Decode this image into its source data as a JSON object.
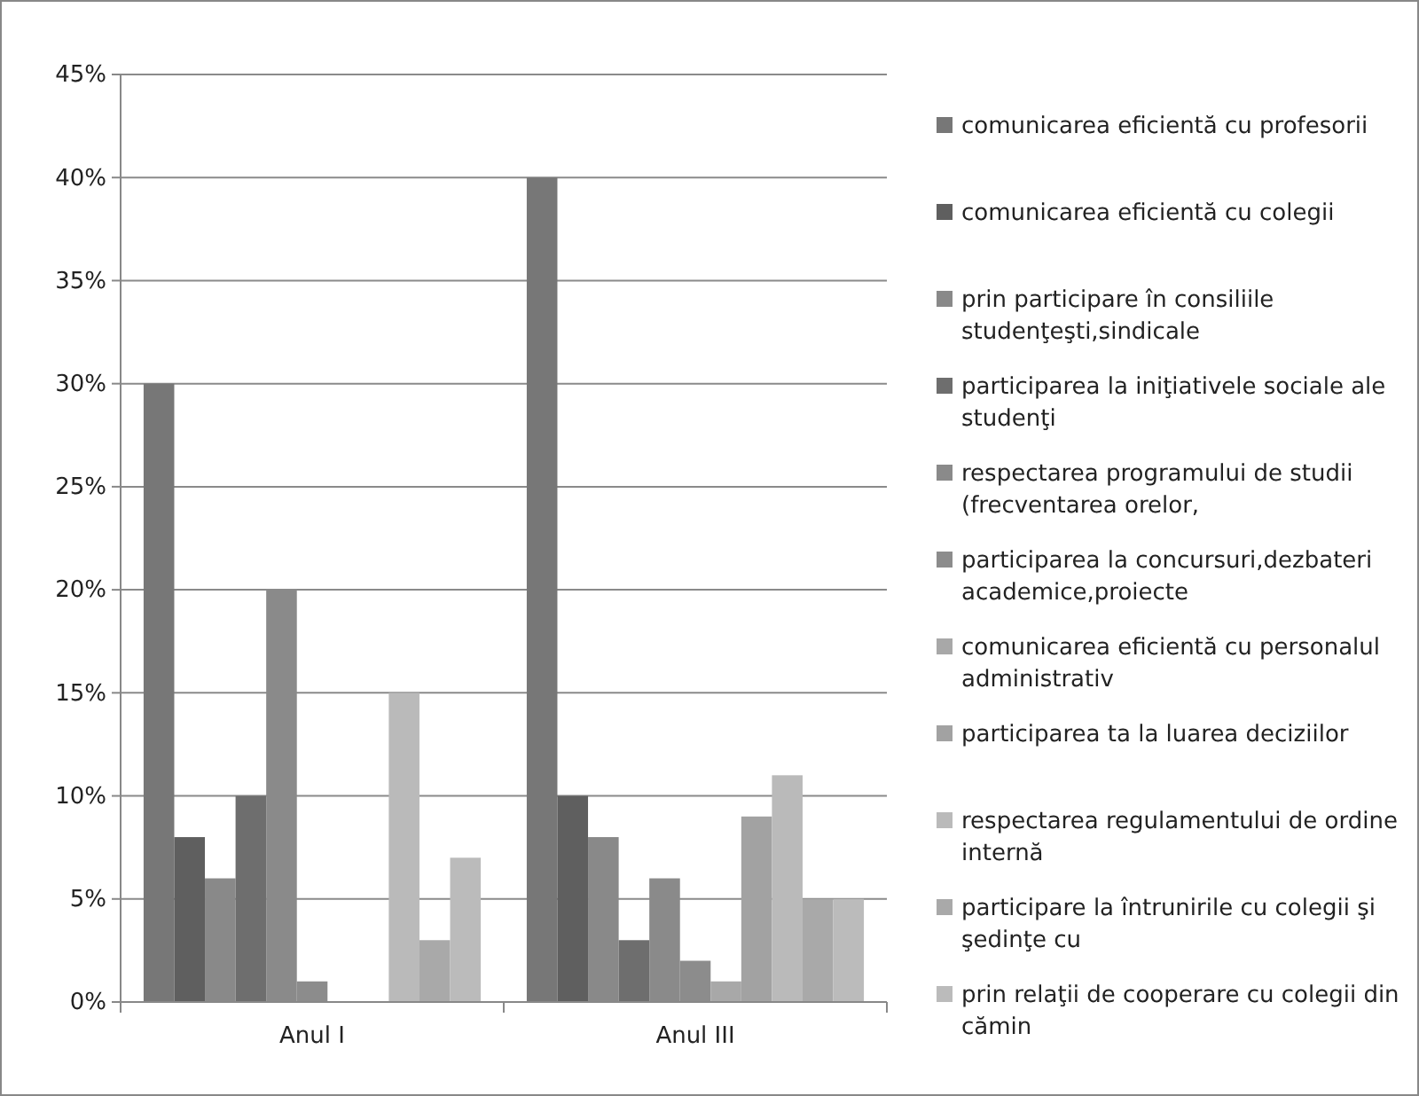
{
  "chart_data": {
    "type": "bar",
    "categories": [
      "Anul I",
      "Anul III"
    ],
    "series": [
      {
        "name": "comunicarea eficientă cu profesorii",
        "color": "#777777",
        "values": [
          30,
          40
        ]
      },
      {
        "name": "comunicarea eficientă cu colegii",
        "color": "#5f5f5f",
        "values": [
          8,
          10
        ]
      },
      {
        "name": "prin participare în consiliile studenţeşti,sindicale",
        "color": "#898989",
        "values": [
          6,
          8
        ]
      },
      {
        "name": "participarea la iniţiativele sociale ale studenţi",
        "color": "#6e6e6e",
        "values": [
          10,
          3
        ]
      },
      {
        "name": "respectarea programului de studii (frecventarea orelor,",
        "color": "#8a8a8a",
        "values": [
          20,
          6
        ]
      },
      {
        "name": "participarea la concursuri,dezbateri academice,proiecte",
        "color": "#8c8c8c",
        "values": [
          1,
          2
        ]
      },
      {
        "name": "comunicarea eficientă cu personalul administrativ",
        "color": "#a8a8a8",
        "values": [
          0,
          1
        ]
      },
      {
        "name": "participarea ta la luarea deciziilor",
        "color": "#a2a2a2",
        "values": [
          0,
          9
        ]
      },
      {
        "name": "respectarea regulamentului de ordine internă",
        "color": "#bababa",
        "values": [
          15,
          11
        ]
      },
      {
        "name": "participare la întrunirile cu colegii şi şedinţe cu",
        "color": "#a9a9a9",
        "values": [
          3,
          5
        ]
      },
      {
        "name": "prin relaţii de cooperare cu colegii din cămin",
        "color": "#bbbbbb",
        "values": [
          7,
          5
        ]
      }
    ],
    "ylim": [
      0,
      45
    ],
    "yticks": [
      {
        "value": 0,
        "label": "0%"
      },
      {
        "value": 5,
        "label": "5%"
      },
      {
        "value": 10,
        "label": "10%"
      },
      {
        "value": 15,
        "label": "15%"
      },
      {
        "value": 20,
        "label": "20%"
      },
      {
        "value": 25,
        "label": "25%"
      },
      {
        "value": 30,
        "label": "30%"
      },
      {
        "value": 35,
        "label": "35%"
      },
      {
        "value": 40,
        "label": "40%"
      },
      {
        "value": 45,
        "label": "45%"
      }
    ],
    "grid": "y",
    "legend": "right"
  }
}
